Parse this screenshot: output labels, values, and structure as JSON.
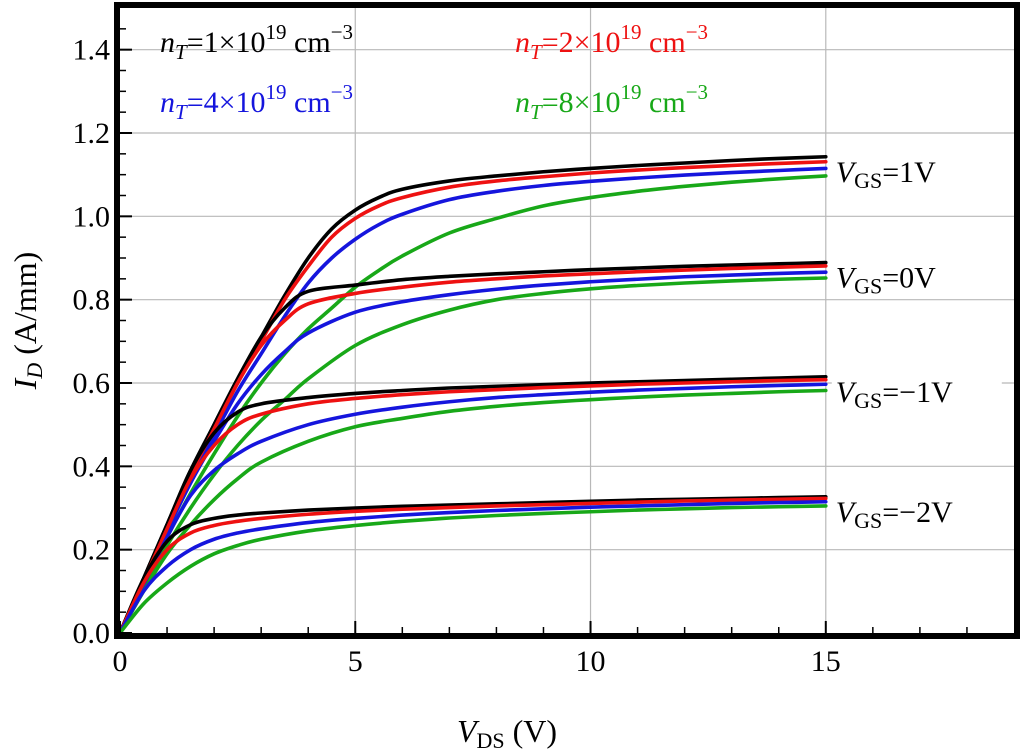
{
  "chart_data": {
    "type": "line",
    "title": "",
    "xlabel": {
      "main": "V",
      "sub": "DS",
      "unit": " (V)"
    },
    "ylabel": {
      "main": "I",
      "sub": "D",
      "unit": " (A/mm)"
    },
    "xlim": [
      0,
      19
    ],
    "ylim": [
      0,
      1.5
    ],
    "x_data_end": 15,
    "grid": true,
    "xticks": [
      {
        "value": 0,
        "label": "0"
      },
      {
        "value": 5,
        "label": "5"
      },
      {
        "value": 10,
        "label": "10"
      },
      {
        "value": 15,
        "label": "15"
      }
    ],
    "yticks": [
      {
        "value": 0.0,
        "label": "0.0"
      },
      {
        "value": 0.2,
        "label": "0.2"
      },
      {
        "value": 0.4,
        "label": "0.4"
      },
      {
        "value": 0.6,
        "label": "0.6"
      },
      {
        "value": 0.8,
        "label": "0.8"
      },
      {
        "value": 1.0,
        "label": "1.0"
      },
      {
        "value": 1.2,
        "label": "1.2"
      },
      {
        "value": 1.4,
        "label": "1.4"
      }
    ],
    "legend": [
      {
        "key": "nT1",
        "color": "#000000",
        "var": "n",
        "sub": "T",
        "value": "=1×10",
        "exp": "19",
        "unit": " cm",
        "unit_exp": "−3"
      },
      {
        "key": "nT2",
        "color": "#ee1111",
        "var": "n",
        "sub": "T",
        "value": "=2×10",
        "exp": "19",
        "unit": " cm",
        "unit_exp": "−3"
      },
      {
        "key": "nT4",
        "color": "#1515dd",
        "var": "n",
        "sub": "T",
        "value": "=4×10",
        "exp": "19",
        "unit": " cm",
        "unit_exp": "−3"
      },
      {
        "key": "nT8",
        "color": "#18a818",
        "var": "n",
        "sub": "T",
        "value": "=8×10",
        "exp": "19",
        "unit": " cm",
        "unit_exp": "−3"
      }
    ],
    "vgs_labels": [
      {
        "main": "V",
        "sub": "GS",
        "value": "=1V"
      },
      {
        "main": "V",
        "sub": "GS",
        "value": "=0V"
      },
      {
        "main": "V",
        "sub": "GS",
        "value": "=−1V"
      },
      {
        "main": "V",
        "sub": "GS",
        "value": "=−2V"
      }
    ],
    "series": [
      {
        "name": "VGS=1V, nT=1e19",
        "color": "#000000",
        "x": [
          0,
          0.5,
          1,
          1.5,
          2,
          2.5,
          3,
          3.5,
          4,
          4.5,
          5,
          5.5,
          6,
          7,
          8,
          9,
          10,
          11,
          12,
          13,
          14,
          15
        ],
        "y": [
          0,
          0.13,
          0.26,
          0.385,
          0.5,
          0.61,
          0.71,
          0.81,
          0.9,
          0.97,
          1.015,
          1.045,
          1.065,
          1.085,
          1.097,
          1.107,
          1.115,
          1.122,
          1.128,
          1.134,
          1.139,
          1.143
        ]
      },
      {
        "name": "VGS=1V, nT=2e19",
        "color": "#ee1111",
        "x": [
          0,
          0.5,
          1,
          1.5,
          2,
          2.5,
          3,
          3.5,
          4,
          4.5,
          5,
          5.5,
          6,
          7,
          8,
          9,
          10,
          11,
          12,
          13,
          14,
          15
        ],
        "y": [
          0,
          0.128,
          0.255,
          0.38,
          0.49,
          0.6,
          0.7,
          0.8,
          0.88,
          0.95,
          0.995,
          1.025,
          1.045,
          1.07,
          1.085,
          1.095,
          1.104,
          1.111,
          1.117,
          1.122,
          1.127,
          1.131
        ]
      },
      {
        "name": "VGS=1V, nT=4e19",
        "color": "#1515dd",
        "x": [
          0,
          0.5,
          1,
          1.5,
          2,
          2.5,
          3,
          3.5,
          4,
          4.5,
          5,
          5.5,
          6,
          7,
          8,
          9,
          10,
          11,
          12,
          13,
          14,
          15
        ],
        "y": [
          0,
          0.125,
          0.25,
          0.37,
          0.475,
          0.58,
          0.67,
          0.76,
          0.84,
          0.9,
          0.945,
          0.98,
          1.005,
          1.04,
          1.06,
          1.074,
          1.084,
          1.092,
          1.099,
          1.105,
          1.11,
          1.115
        ]
      },
      {
        "name": "VGS=1V, nT=8e19",
        "color": "#18a818",
        "x": [
          0,
          0.5,
          1,
          1.5,
          2,
          2.5,
          3,
          3.5,
          4,
          4.5,
          5,
          5.5,
          6,
          7,
          8,
          9,
          10,
          11,
          12,
          13,
          14,
          15
        ],
        "y": [
          0,
          0.115,
          0.23,
          0.335,
          0.43,
          0.52,
          0.6,
          0.67,
          0.73,
          0.78,
          0.83,
          0.87,
          0.905,
          0.96,
          0.995,
          1.025,
          1.045,
          1.06,
          1.072,
          1.082,
          1.09,
          1.097
        ]
      },
      {
        "name": "VGS=0V, nT=1e19",
        "color": "#000000",
        "x": [
          0,
          0.5,
          1,
          1.5,
          2,
          2.5,
          3,
          3.5,
          4,
          5,
          6,
          7,
          8,
          9,
          10,
          11,
          12,
          13,
          14,
          15
        ],
        "y": [
          0,
          0.13,
          0.26,
          0.39,
          0.5,
          0.61,
          0.71,
          0.78,
          0.82,
          0.835,
          0.848,
          0.856,
          0.862,
          0.867,
          0.872,
          0.876,
          0.88,
          0.883,
          0.886,
          0.889
        ]
      },
      {
        "name": "VGS=0V, nT=2e19",
        "color": "#ee1111",
        "x": [
          0,
          0.5,
          1,
          1.5,
          2,
          2.5,
          3,
          3.5,
          4,
          5,
          6,
          7,
          8,
          9,
          10,
          11,
          12,
          13,
          14,
          15
        ],
        "y": [
          0,
          0.128,
          0.255,
          0.38,
          0.49,
          0.6,
          0.69,
          0.75,
          0.79,
          0.815,
          0.83,
          0.842,
          0.85,
          0.857,
          0.862,
          0.867,
          0.871,
          0.875,
          0.878,
          0.881
        ]
      },
      {
        "name": "VGS=0V, nT=4e19",
        "color": "#1515dd",
        "x": [
          0,
          0.5,
          1,
          1.5,
          2,
          2.5,
          3,
          3.5,
          4,
          5,
          6,
          7,
          8,
          9,
          10,
          11,
          12,
          13,
          14,
          15
        ],
        "y": [
          0,
          0.125,
          0.245,
          0.36,
          0.46,
          0.55,
          0.62,
          0.675,
          0.72,
          0.77,
          0.795,
          0.812,
          0.825,
          0.835,
          0.843,
          0.849,
          0.855,
          0.859,
          0.863,
          0.866
        ]
      },
      {
        "name": "VGS=0V, nT=8e19",
        "color": "#18a818",
        "x": [
          0,
          0.5,
          1,
          1.5,
          2,
          2.5,
          3,
          3.5,
          4,
          5,
          6,
          7,
          8,
          9,
          10,
          11,
          12,
          13,
          14,
          15
        ],
        "y": [
          0,
          0.11,
          0.21,
          0.3,
          0.38,
          0.45,
          0.51,
          0.56,
          0.61,
          0.69,
          0.74,
          0.775,
          0.8,
          0.815,
          0.826,
          0.834,
          0.84,
          0.845,
          0.849,
          0.852
        ]
      },
      {
        "name": "VGS=-1V, nT=1e19",
        "color": "#000000",
        "x": [
          0,
          0.5,
          1,
          1.5,
          2,
          2.5,
          3,
          4,
          5,
          6,
          7,
          8,
          9,
          10,
          11,
          12,
          13,
          14,
          15
        ],
        "y": [
          0,
          0.13,
          0.26,
          0.39,
          0.48,
          0.53,
          0.55,
          0.565,
          0.575,
          0.582,
          0.588,
          0.592,
          0.596,
          0.6,
          0.603,
          0.606,
          0.609,
          0.612,
          0.615
        ]
      },
      {
        "name": "VGS=-1V, nT=2e19",
        "color": "#ee1111",
        "x": [
          0,
          0.5,
          1,
          1.5,
          2,
          2.5,
          3,
          4,
          5,
          6,
          7,
          8,
          9,
          10,
          11,
          12,
          13,
          14,
          15
        ],
        "y": [
          0,
          0.125,
          0.25,
          0.37,
          0.45,
          0.5,
          0.525,
          0.55,
          0.563,
          0.572,
          0.579,
          0.584,
          0.589,
          0.593,
          0.597,
          0.6,
          0.603,
          0.606,
          0.608
        ]
      },
      {
        "name": "VGS=-1V, nT=4e19",
        "color": "#1515dd",
        "x": [
          0,
          0.5,
          1,
          1.5,
          2,
          2.5,
          3,
          4,
          5,
          6,
          7,
          8,
          9,
          10,
          11,
          12,
          13,
          14,
          15
        ],
        "y": [
          0,
          0.115,
          0.23,
          0.33,
          0.39,
          0.43,
          0.46,
          0.5,
          0.525,
          0.542,
          0.555,
          0.565,
          0.572,
          0.578,
          0.583,
          0.587,
          0.591,
          0.594,
          0.597
        ]
      },
      {
        "name": "VGS=-1V, nT=8e19",
        "color": "#18a818",
        "x": [
          0,
          0.5,
          1,
          1.5,
          2,
          2.5,
          3,
          4,
          5,
          6,
          7,
          8,
          9,
          10,
          11,
          12,
          13,
          14,
          15
        ],
        "y": [
          0,
          0.1,
          0.19,
          0.26,
          0.32,
          0.37,
          0.41,
          0.46,
          0.495,
          0.515,
          0.532,
          0.544,
          0.553,
          0.56,
          0.566,
          0.571,
          0.575,
          0.579,
          0.582
        ]
      },
      {
        "name": "VGS=-2V, nT=1e19",
        "color": "#000000",
        "x": [
          0,
          0.5,
          1,
          1.5,
          2,
          2.5,
          3,
          4,
          5,
          6,
          7,
          8,
          9,
          10,
          11,
          12,
          13,
          14,
          15
        ],
        "y": [
          0,
          0.13,
          0.22,
          0.26,
          0.275,
          0.283,
          0.288,
          0.295,
          0.3,
          0.304,
          0.307,
          0.31,
          0.313,
          0.316,
          0.319,
          0.321,
          0.323,
          0.325,
          0.327
        ]
      },
      {
        "name": "VGS=-2V, nT=2e19",
        "color": "#ee1111",
        "x": [
          0,
          0.5,
          1,
          1.5,
          2,
          2.5,
          3,
          4,
          5,
          6,
          7,
          8,
          9,
          10,
          11,
          12,
          13,
          14,
          15
        ],
        "y": [
          0,
          0.12,
          0.2,
          0.24,
          0.258,
          0.268,
          0.275,
          0.285,
          0.292,
          0.297,
          0.301,
          0.305,
          0.308,
          0.311,
          0.314,
          0.317,
          0.319,
          0.321,
          0.323
        ]
      },
      {
        "name": "VGS=-2V, nT=4e19",
        "color": "#1515dd",
        "x": [
          0,
          0.5,
          1,
          1.5,
          2,
          2.5,
          3,
          4,
          5,
          6,
          7,
          8,
          9,
          10,
          11,
          12,
          13,
          14,
          15
        ],
        "y": [
          0,
          0.1,
          0.16,
          0.2,
          0.225,
          0.24,
          0.25,
          0.265,
          0.275,
          0.283,
          0.289,
          0.294,
          0.298,
          0.302,
          0.305,
          0.308,
          0.311,
          0.313,
          0.315
        ]
      },
      {
        "name": "VGS=-2V, nT=8e19",
        "color": "#18a818",
        "x": [
          0,
          0.5,
          1,
          1.5,
          2,
          2.5,
          3,
          4,
          5,
          6,
          7,
          8,
          9,
          10,
          11,
          12,
          13,
          14,
          15
        ],
        "y": [
          0,
          0.07,
          0.12,
          0.16,
          0.19,
          0.21,
          0.225,
          0.245,
          0.258,
          0.268,
          0.276,
          0.282,
          0.287,
          0.291,
          0.295,
          0.298,
          0.301,
          0.303,
          0.305
        ]
      }
    ]
  }
}
